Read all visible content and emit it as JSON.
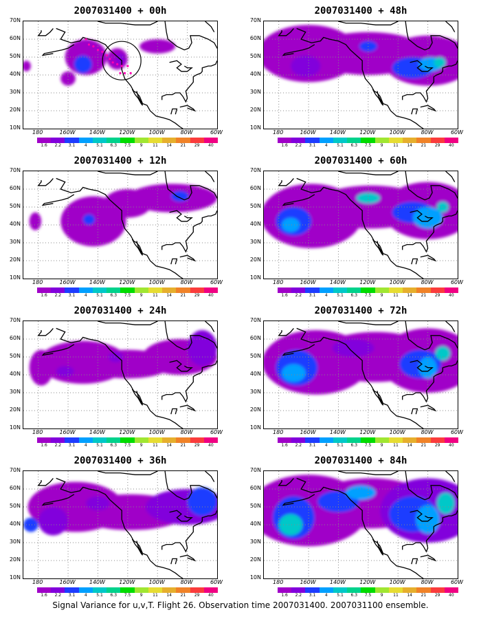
{
  "colorbar": {
    "colors": [
      "#a000c8",
      "#8200dc",
      "#1e3cff",
      "#00a0ff",
      "#00c8c8",
      "#00d28c",
      "#00dc00",
      "#a0e632",
      "#e6dc32",
      "#e6af2d",
      "#f08228",
      "#fa3c3c",
      "#f00082"
    ],
    "labels": [
      "1.6",
      "2.2",
      "3.1",
      "4",
      "5.1",
      "6.3",
      "7.5",
      "9",
      "11",
      "14",
      "21",
      "29",
      "40"
    ]
  },
  "axes": {
    "lat_labels": [
      "70N",
      "60N",
      "50N",
      "40N",
      "30N",
      "20N",
      "10N"
    ],
    "lon_labels": [
      "180",
      "160W",
      "140W",
      "120W",
      "100W",
      "80W",
      "60W"
    ]
  },
  "panels": [
    {
      "title": "2007031400 + 00h",
      "lead": 0
    },
    {
      "title": "2007031400 + 12h",
      "lead": 12
    },
    {
      "title": "2007031400 + 24h",
      "lead": 24
    },
    {
      "title": "2007031400 + 36h",
      "lead": 36
    },
    {
      "title": "2007031400 + 48h",
      "lead": 48
    },
    {
      "title": "2007031400 + 60h",
      "lead": 60
    },
    {
      "title": "2007031400 + 72h",
      "lead": 72
    },
    {
      "title": "2007031400 + 84h",
      "lead": 84
    }
  ],
  "caption": "Signal Variance for u,v,T. Flight 26. Observation time 2007031400. 2007031100 ensemble."
}
